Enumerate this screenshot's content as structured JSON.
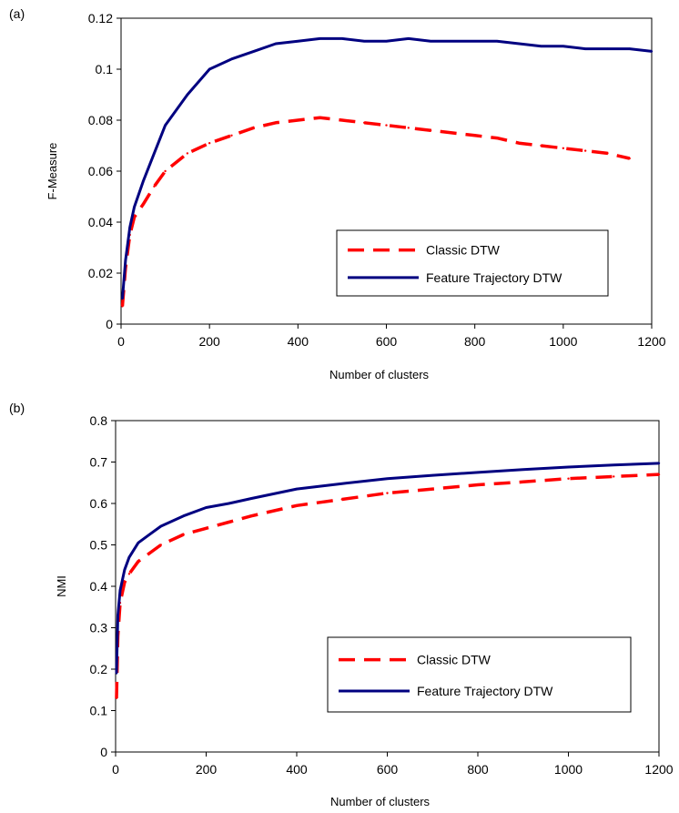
{
  "chart_data": [
    {
      "type": "line",
      "panel_label": "(a)",
      "title": "",
      "xlabel": "Number of clusters",
      "ylabel": "F-Measure",
      "xlim": [
        0,
        1200
      ],
      "ylim": [
        0,
        0.12
      ],
      "xticks": [
        0,
        200,
        400,
        600,
        800,
        1000,
        1200
      ],
      "xtick_labels": [
        "0",
        "200",
        "400",
        "600",
        "800",
        "1000",
        "1200"
      ],
      "yticks": [
        0,
        0.02,
        0.04,
        0.06,
        0.08,
        0.1,
        0.12
      ],
      "ytick_labels": [
        "0",
        "0.02",
        "0.04",
        "0.06",
        "0.08",
        "0.1",
        "0.12"
      ],
      "grid": false,
      "legend_position": "bottom-right",
      "series": [
        {
          "name": "Classic  DTW",
          "color": "#ff0000",
          "style": "dashed",
          "x": [
            3,
            10,
            20,
            30,
            50,
            75,
            100,
            150,
            200,
            250,
            300,
            350,
            400,
            450,
            500,
            550,
            600,
            650,
            700,
            750,
            800,
            850,
            900,
            950,
            1000,
            1050,
            1100,
            1150
          ],
          "y": [
            0.007,
            0.022,
            0.035,
            0.042,
            0.047,
            0.054,
            0.06,
            0.067,
            0.071,
            0.074,
            0.077,
            0.079,
            0.08,
            0.081,
            0.08,
            0.079,
            0.078,
            0.077,
            0.076,
            0.075,
            0.074,
            0.073,
            0.071,
            0.07,
            0.069,
            0.068,
            0.067,
            0.065
          ]
        },
        {
          "name": "Feature Trajectory DTW",
          "color": "#000080",
          "style": "solid",
          "x": [
            3,
            10,
            20,
            30,
            50,
            75,
            100,
            150,
            200,
            250,
            300,
            350,
            400,
            450,
            500,
            550,
            600,
            650,
            700,
            750,
            800,
            850,
            900,
            950,
            1000,
            1050,
            1100,
            1150,
            1200
          ],
          "y": [
            0.01,
            0.025,
            0.038,
            0.046,
            0.056,
            0.067,
            0.078,
            0.09,
            0.1,
            0.104,
            0.107,
            0.11,
            0.111,
            0.112,
            0.112,
            0.111,
            0.111,
            0.112,
            0.111,
            0.111,
            0.111,
            0.111,
            0.11,
            0.109,
            0.109,
            0.108,
            0.108,
            0.108,
            0.107
          ]
        }
      ]
    },
    {
      "type": "line",
      "panel_label": "(b)",
      "title": "",
      "xlabel": "Number of clusters",
      "ylabel": "NMI",
      "xlim": [
        0,
        1200
      ],
      "ylim": [
        0,
        0.8
      ],
      "xticks": [
        0,
        200,
        400,
        600,
        800,
        1000,
        1200
      ],
      "xtick_labels": [
        "0",
        "200",
        "400",
        "600",
        "800",
        "1000",
        "1200"
      ],
      "yticks": [
        0,
        0.1,
        0.2,
        0.3,
        0.4,
        0.5,
        0.6,
        0.7,
        0.8
      ],
      "ytick_labels": [
        "0",
        "0.1",
        "0.2",
        "0.3",
        "0.4",
        "0.5",
        "0.6",
        "0.7",
        "0.8"
      ],
      "grid": false,
      "legend_position": "bottom-right",
      "series": [
        {
          "name": "Classic DTW",
          "color": "#ff0000",
          "style": "dashed",
          "x": [
            2,
            5,
            10,
            20,
            30,
            50,
            75,
            100,
            150,
            200,
            250,
            300,
            400,
            500,
            600,
            700,
            800,
            900,
            1000,
            1100,
            1200
          ],
          "y": [
            0.13,
            0.28,
            0.36,
            0.41,
            0.43,
            0.46,
            0.48,
            0.5,
            0.525,
            0.54,
            0.555,
            0.57,
            0.595,
            0.61,
            0.625,
            0.635,
            0.645,
            0.652,
            0.66,
            0.665,
            0.67
          ]
        },
        {
          "name": "Feature Trajectory DTW",
          "color": "#000080",
          "style": "solid",
          "x": [
            2,
            5,
            10,
            20,
            30,
            50,
            75,
            100,
            150,
            200,
            250,
            300,
            400,
            500,
            600,
            700,
            800,
            900,
            1000,
            1100,
            1200
          ],
          "y": [
            0.19,
            0.33,
            0.39,
            0.44,
            0.47,
            0.505,
            0.525,
            0.545,
            0.57,
            0.59,
            0.6,
            0.612,
            0.635,
            0.648,
            0.66,
            0.668,
            0.675,
            0.682,
            0.688,
            0.693,
            0.697
          ]
        }
      ]
    }
  ]
}
